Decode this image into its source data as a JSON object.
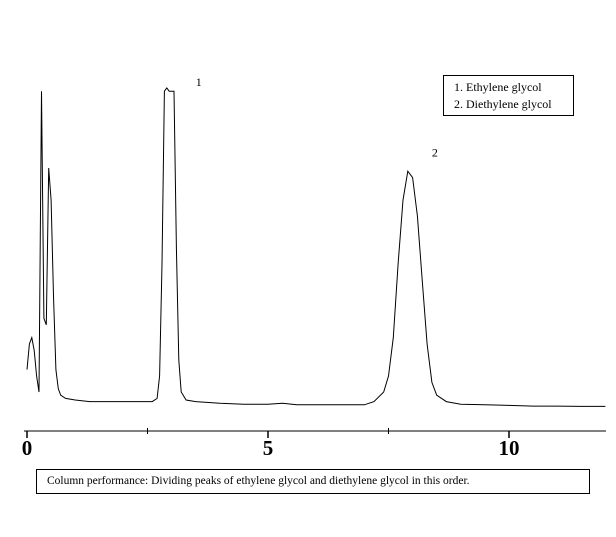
{
  "chart_data": {
    "type": "line",
    "xlabel": "",
    "ylabel": "",
    "x_ticks": [
      {
        "value": 0,
        "label": "0"
      },
      {
        "value": 5,
        "label": "5"
      },
      {
        "value": 10,
        "label": "10"
      }
    ],
    "xlim": [
      -0.1,
      12.0
    ],
    "ylim": [
      0,
      1
    ],
    "grid": false,
    "legend": {
      "placement": "top-right",
      "entries": [
        "1.  Ethylene glycol",
        "2.  Diethylene glycol"
      ]
    },
    "peak_labels": [
      {
        "label": "1",
        "x": 3.5,
        "y": 1.0
      },
      {
        "label": "2",
        "x": 8.4,
        "y": 0.78
      }
    ],
    "series": [
      {
        "x": [
          0.0,
          0.05,
          0.1,
          0.15,
          0.2,
          0.25,
          0.3,
          0.35,
          0.4,
          0.45,
          0.5,
          0.55,
          0.6,
          0.65,
          0.7,
          0.8,
          1.0,
          1.3,
          1.6,
          2.0,
          2.3,
          2.6,
          2.7,
          2.75,
          2.8,
          2.85,
          2.9,
          2.95,
          3.0,
          3.05,
          3.1,
          3.15,
          3.2,
          3.3,
          3.5,
          4.0,
          4.5,
          5.0,
          5.3,
          5.6,
          6.0,
          6.6,
          7.0,
          7.2,
          7.4,
          7.5,
          7.6,
          7.7,
          7.8,
          7.9,
          8.0,
          8.1,
          8.2,
          8.3,
          8.4,
          8.5,
          8.7,
          9.0,
          9.5,
          10.0,
          10.5,
          11.0,
          11.5,
          12.0
        ],
        "y": [
          0.12,
          0.2,
          0.22,
          0.18,
          0.1,
          0.05,
          0.99,
          0.28,
          0.26,
          0.75,
          0.65,
          0.35,
          0.12,
          0.06,
          0.04,
          0.03,
          0.025,
          0.02,
          0.02,
          0.02,
          0.02,
          0.02,
          0.03,
          0.1,
          0.45,
          0.99,
          1.0,
          0.99,
          0.99,
          0.99,
          0.5,
          0.15,
          0.05,
          0.025,
          0.02,
          0.015,
          0.012,
          0.012,
          0.015,
          0.01,
          0.01,
          0.01,
          0.01,
          0.02,
          0.05,
          0.1,
          0.22,
          0.45,
          0.65,
          0.74,
          0.72,
          0.6,
          0.4,
          0.2,
          0.08,
          0.04,
          0.02,
          0.012,
          0.01,
          0.008,
          0.006,
          0.006,
          0.005,
          0.005
        ]
      }
    ]
  },
  "caption": "Column performance: Dividing peaks of ethylene glycol and diethylene glycol in this order."
}
